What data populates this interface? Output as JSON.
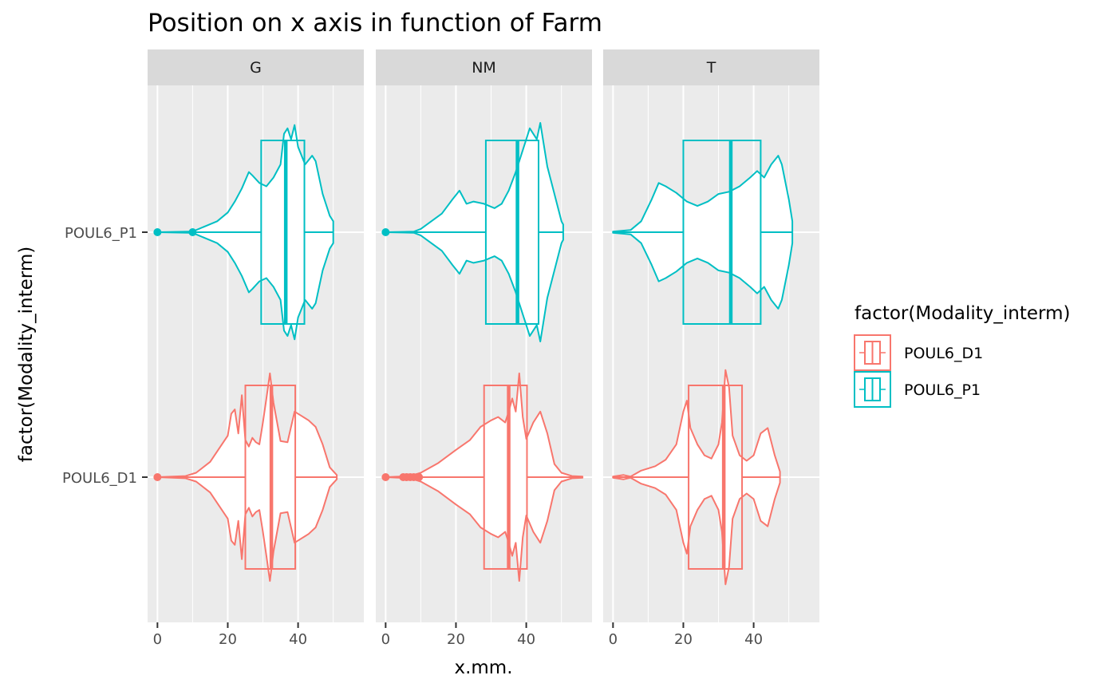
{
  "chart_data": {
    "type": "violin",
    "title": "Position on x axis in function of Farm",
    "xlabel": "x.mm.",
    "ylabel": "factor(Modality_interm)",
    "categories": [
      "POUL6_D1",
      "POUL6_P1"
    ],
    "facets": [
      "G",
      "NM",
      "T"
    ],
    "xlim": [
      -2.8,
      58.7
    ],
    "xticks": [
      0,
      20,
      40
    ],
    "grid": true,
    "legend": {
      "title": "factor(Modality_interm)",
      "position": "right",
      "entries": [
        "POUL6_D1",
        "POUL6_P1"
      ]
    },
    "colors": {
      "POUL6_D1": "#f8766d",
      "POUL6_P1": "#00bfc4"
    },
    "series": [
      {
        "name": "POUL6_D1",
        "panels": [
          {
            "facet": "G",
            "box": {
              "q1": 25,
              "median": 32.4,
              "q3": 39.2,
              "whisker_low": 0,
              "whisker_high": 51
            },
            "outliers": [
              0
            ],
            "violin": [
              [
                0,
                0
              ],
              [
                8,
                0.01
              ],
              [
                11,
                0.04
              ],
              [
                15,
                0.14
              ],
              [
                20,
                0.38
              ],
              [
                21,
                0.58
              ],
              [
                22,
                0.62
              ],
              [
                23,
                0.4
              ],
              [
                24,
                0.75
              ],
              [
                25,
                0.34
              ],
              [
                26,
                0.28
              ],
              [
                27,
                0.36
              ],
              [
                28,
                0.32
              ],
              [
                29,
                0.3
              ],
              [
                30,
                0.5
              ],
              [
                31,
                0.72
              ],
              [
                32,
                0.95
              ],
              [
                33,
                0.68
              ],
              [
                35,
                0.33
              ],
              [
                37,
                0.32
              ],
              [
                39,
                0.6
              ],
              [
                41,
                0.56
              ],
              [
                43,
                0.52
              ],
              [
                45,
                0.46
              ],
              [
                47,
                0.3
              ],
              [
                49,
                0.09
              ],
              [
                51,
                0.02
              ]
            ]
          },
          {
            "facet": "NM",
            "box": {
              "q1": 28,
              "median": 35,
              "q3": 40.2,
              "whisker_low": 0,
              "whisker_high": 56
            },
            "outliers": [
              0,
              5,
              6,
              7,
              8,
              9,
              9.5
            ],
            "violin": [
              [
                0,
                0
              ],
              [
                7,
                0.01
              ],
              [
                10,
                0.04
              ],
              [
                15,
                0.13
              ],
              [
                20,
                0.25
              ],
              [
                24,
                0.34
              ],
              [
                27,
                0.46
              ],
              [
                30,
                0.52
              ],
              [
                32,
                0.55
              ],
              [
                34,
                0.5
              ],
              [
                35,
                0.6
              ],
              [
                36,
                0.72
              ],
              [
                37,
                0.6
              ],
              [
                38,
                0.95
              ],
              [
                39,
                0.55
              ],
              [
                40,
                0.35
              ],
              [
                42,
                0.5
              ],
              [
                44,
                0.6
              ],
              [
                46,
                0.4
              ],
              [
                48,
                0.12
              ],
              [
                50,
                0.04
              ],
              [
                53,
                0.01
              ],
              [
                56,
                0.005
              ]
            ]
          },
          {
            "facet": "T",
            "box": {
              "q1": 21.5,
              "median": 31.5,
              "q3": 36.7,
              "whisker_low": 0,
              "whisker_high": 47.5
            },
            "outliers": [],
            "violin": [
              [
                0,
                0.005
              ],
              [
                3,
                0.02
              ],
              [
                5,
                0.005
              ],
              [
                8,
                0.06
              ],
              [
                12,
                0.1
              ],
              [
                15,
                0.16
              ],
              [
                18,
                0.3
              ],
              [
                20,
                0.6
              ],
              [
                21,
                0.7
              ],
              [
                22,
                0.45
              ],
              [
                24,
                0.3
              ],
              [
                26,
                0.2
              ],
              [
                28,
                0.17
              ],
              [
                30,
                0.3
              ],
              [
                31,
                0.5
              ],
              [
                32,
                0.98
              ],
              [
                33,
                0.82
              ],
              [
                34,
                0.38
              ],
              [
                36,
                0.2
              ],
              [
                38,
                0.15
              ],
              [
                40,
                0.2
              ],
              [
                42,
                0.4
              ],
              [
                44,
                0.45
              ],
              [
                46,
                0.2
              ],
              [
                47.5,
                0.05
              ]
            ]
          }
        ]
      },
      {
        "name": "POUL6_P1",
        "panels": [
          {
            "facet": "G",
            "box": {
              "q1": 29.5,
              "median": 36.5,
              "q3": 41.8,
              "whisker_low": 0,
              "whisker_high": 50
            },
            "outliers": [
              0,
              10
            ],
            "violin": [
              [
                0,
                0
              ],
              [
                9,
                0.005
              ],
              [
                11,
                0.02
              ],
              [
                14,
                0.06
              ],
              [
                17,
                0.1
              ],
              [
                20,
                0.18
              ],
              [
                22,
                0.28
              ],
              [
                24,
                0.4
              ],
              [
                26,
                0.55
              ],
              [
                27,
                0.52
              ],
              [
                29,
                0.45
              ],
              [
                31,
                0.42
              ],
              [
                33,
                0.5
              ],
              [
                35,
                0.62
              ],
              [
                36,
                0.9
              ],
              [
                37,
                0.95
              ],
              [
                38,
                0.85
              ],
              [
                39,
                0.98
              ],
              [
                40,
                0.78
              ],
              [
                42,
                0.62
              ],
              [
                44,
                0.7
              ],
              [
                45,
                0.65
              ],
              [
                47,
                0.35
              ],
              [
                49,
                0.15
              ],
              [
                50,
                0.1
              ]
            ]
          },
          {
            "facet": "NM",
            "box": {
              "q1": 28.5,
              "median": 37.5,
              "q3": 43.5,
              "whisker_low": 0,
              "whisker_high": 50.5
            },
            "outliers": [
              0
            ],
            "violin": [
              [
                0,
                0
              ],
              [
                8,
                0.005
              ],
              [
                10,
                0.03
              ],
              [
                13,
                0.1
              ],
              [
                16,
                0.17
              ],
              [
                19,
                0.3
              ],
              [
                21,
                0.38
              ],
              [
                23,
                0.26
              ],
              [
                25,
                0.28
              ],
              [
                28,
                0.26
              ],
              [
                31,
                0.22
              ],
              [
                33,
                0.26
              ],
              [
                35,
                0.38
              ],
              [
                37,
                0.55
              ],
              [
                39,
                0.75
              ],
              [
                41,
                0.95
              ],
              [
                43,
                0.85
              ],
              [
                44,
                1.0
              ],
              [
                46,
                0.6
              ],
              [
                48,
                0.35
              ],
              [
                50,
                0.1
              ],
              [
                50.5,
                0.07
              ]
            ]
          },
          {
            "facet": "T",
            "box": {
              "q1": 20,
              "median": 33.5,
              "q3": 42,
              "whisker_low": 0,
              "whisker_high": 51
            },
            "outliers": [],
            "violin": [
              [
                0,
                0.005
              ],
              [
                5,
                0.02
              ],
              [
                8,
                0.1
              ],
              [
                11,
                0.3
              ],
              [
                13,
                0.45
              ],
              [
                15,
                0.42
              ],
              [
                18,
                0.36
              ],
              [
                21,
                0.28
              ],
              [
                24,
                0.24
              ],
              [
                27,
                0.28
              ],
              [
                30,
                0.35
              ],
              [
                33,
                0.37
              ],
              [
                36,
                0.42
              ],
              [
                39,
                0.5
              ],
              [
                41,
                0.56
              ],
              [
                43,
                0.5
              ],
              [
                45,
                0.62
              ],
              [
                47,
                0.7
              ],
              [
                48,
                0.62
              ],
              [
                50,
                0.3
              ],
              [
                51,
                0.1
              ]
            ]
          }
        ]
      }
    ]
  }
}
